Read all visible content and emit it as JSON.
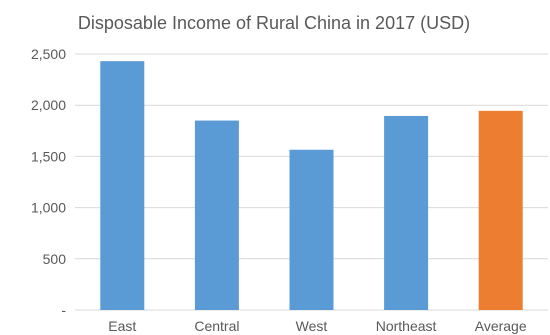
{
  "chart_data": {
    "type": "bar",
    "title": "Disposable Income of Rural China in 2017 (USD)",
    "xlabel": "",
    "ylabel": "",
    "categories": [
      "East",
      "Central",
      "West",
      "Northeast",
      "Average"
    ],
    "values": [
      2430,
      1850,
      1565,
      1895,
      1945
    ],
    "ylim": [
      0,
      2500
    ],
    "yticks": [
      0,
      500,
      1000,
      1500,
      2000,
      2500
    ],
    "ytick_labels": [
      "-",
      "500",
      "1,000",
      "1,500",
      "2,000",
      "2,500"
    ],
    "grid": true,
    "legend": "none",
    "colors": {
      "default_bar": "#5b9bd5",
      "highlight_bar": "#ed7d31",
      "grid": "#d9d9d9",
      "text": "#595959"
    },
    "highlight_category": "Average"
  }
}
